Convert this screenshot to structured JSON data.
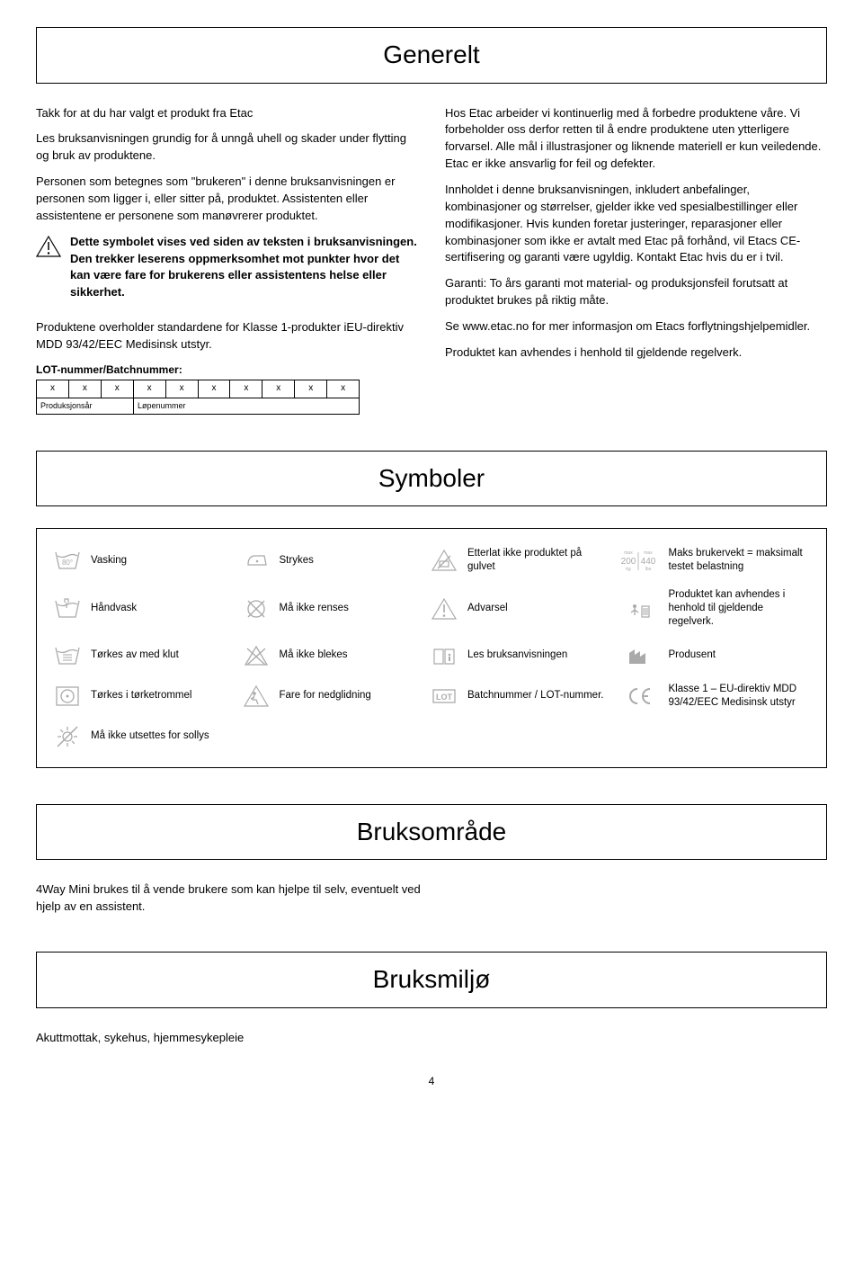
{
  "section_generelt": {
    "title": "Generelt",
    "left": {
      "p1": "Takk for at du har valgt et produkt fra Etac",
      "p2": "Les bruksanvisningen grundig for å unngå uhell og skader under flytting og bruk av produktene.",
      "p3": "Personen som betegnes som \"brukeren\" i denne bruksanvisningen er personen som ligger i, eller sitter på, produktet. Assistenten eller assistentene er personene som manøvrerer produktet.",
      "warn": "Dette symbolet vises ved siden av teksten i bruksanvisningen. Den trekker leserens oppmerksomhet mot punkter hvor det kan være fare for brukerens eller assistentens helse eller sikkerhet.",
      "p4": "Produktene overholder standardene for Klasse 1-produkter iEU-direktiv MDD 93/42/EEC Medisinsk utstyr.",
      "lot_label": "LOT-nummer/Batchnummer:",
      "lot_cells": [
        "x",
        "x",
        "x",
        "x",
        "x",
        "x",
        "x",
        "x",
        "x",
        "x"
      ],
      "lot_sub1": "Produksjonsår",
      "lot_sub2": "Løpenummer"
    },
    "right": {
      "p1": "Hos Etac arbeider vi kontinuerlig med å forbedre produktene våre. Vi forbeholder oss derfor retten til å endre produktene uten ytterligere forvarsel. Alle mål i illustrasjoner og liknende materiell er kun veiledende. Etac er ikke ansvarlig for feil og defekter.",
      "p2": "Innholdet i denne bruksanvisningen, inkludert anbefalinger, kombinasjoner og størrelser, gjelder ikke ved spesialbestillinger eller modifikasjoner. Hvis kunden foretar justeringer, reparasjoner eller kombinasjoner som ikke er avtalt med Etac på forhånd, vil Etacs CE-sertifisering og garanti være ugyldig. Kontakt Etac hvis du er i tvil.",
      "p3": "Garanti: To års garanti mot material- og produksjonsfeil forutsatt at produktet brukes på riktig måte.",
      "p4": "Se www.etac.no for mer informasjon om Etacs forflytningshjelpemidler.",
      "p5": "Produktet kan avhendes i henhold til gjeldende regelverk."
    }
  },
  "section_symboler": {
    "title": "Symboler",
    "items": [
      {
        "icon": "wash80",
        "label": "Vasking"
      },
      {
        "icon": "iron",
        "label": "Strykes"
      },
      {
        "icon": "nofloor",
        "label": "Etterlat ikke produktet på gulvet"
      },
      {
        "icon": "maxweight",
        "label": "Maks brukervekt = maksimalt testet belastning"
      },
      {
        "icon": "handwash",
        "label": "Håndvask"
      },
      {
        "icon": "norinse",
        "label": "Må ikke renses"
      },
      {
        "icon": "warn",
        "label": "Advarsel"
      },
      {
        "icon": "recycle",
        "label": "Produktet kan avhendes i henhold til gjeldende regelverk."
      },
      {
        "icon": "wipe",
        "label": "Tørkes av med klut"
      },
      {
        "icon": "nobleach",
        "label": "Må ikke blekes"
      },
      {
        "icon": "manual",
        "label": "Les bruksanvisningen"
      },
      {
        "icon": "mfr",
        "label": "Produsent"
      },
      {
        "icon": "tumble",
        "label": "Tørkes i tørketrommel"
      },
      {
        "icon": "slip",
        "label": "Fare for nedglidning"
      },
      {
        "icon": "lot",
        "label": "Batchnummer / LOT-nummer."
      },
      {
        "icon": "ce",
        "label": "Klasse 1 – EU-direktiv MDD 93/42/EEC Medisinsk utstyr"
      },
      {
        "icon": "nosun",
        "label": "Må ikke utsettes for sollys"
      },
      {
        "icon": "",
        "label": ""
      },
      {
        "icon": "",
        "label": ""
      },
      {
        "icon": "",
        "label": ""
      }
    ],
    "maxweight": {
      "kg": "200",
      "lbs": "440",
      "top": "max"
    }
  },
  "section_bruksomrade": {
    "title": "Bruksområde",
    "text": "4Way Mini brukes til å vende brukere som kan hjelpe til selv, eventuelt ved hjelp av en assistent."
  },
  "section_bruksmiljo": {
    "title": "Bruksmiljø",
    "text": "Akuttmottak, sykehus, hjemmesykepleie"
  },
  "page_number": "4"
}
